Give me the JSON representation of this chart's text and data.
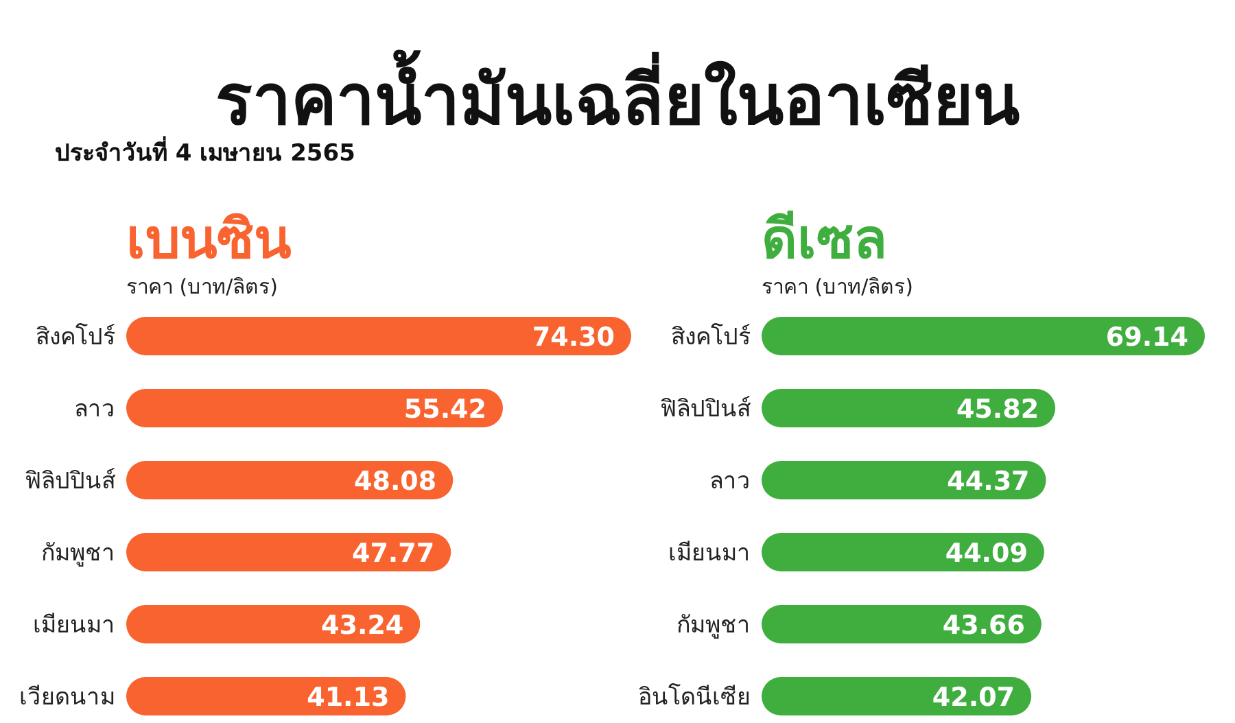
{
  "chart_data": [
    {
      "type": "other",
      "title": "ราคาน้ำมันเฉลี่ยในอาเซียน",
      "subtitle": "ประจำวันที่ 4 เมษายน 2565"
    },
    {
      "type": "bar",
      "orientation": "horizontal",
      "title": "เบนซิน",
      "subtitle": "ราคา (บาท/ลิตร)",
      "categories": [
        "สิงคโปร์",
        "ลาว",
        "ฟิลิปปินส์",
        "กัมพูชา",
        "เมียนมา",
        "เวียดนาม"
      ],
      "values": [
        74.3,
        55.42,
        48.08,
        47.77,
        43.24,
        41.13
      ],
      "value_labels": [
        "74.30",
        "55.42",
        "48.08",
        "47.77",
        "43.24",
        "41.13"
      ],
      "color": "#f8632f"
    },
    {
      "type": "bar",
      "orientation": "horizontal",
      "title": "ดีเซล",
      "subtitle": "ราคา (บาท/ลิตร)",
      "categories": [
        "สิงคโปร์",
        "ฟิลิปปินส์",
        "ลาว",
        "เมียนมา",
        "กัมพูชา",
        "อินโดนีเซีย"
      ],
      "values": [
        69.14,
        45.82,
        44.37,
        44.09,
        43.66,
        42.07
      ],
      "value_labels": [
        "69.14",
        "45.82",
        "44.37",
        "44.09",
        "43.66",
        "42.07"
      ],
      "color": "#3fae3f"
    }
  ]
}
